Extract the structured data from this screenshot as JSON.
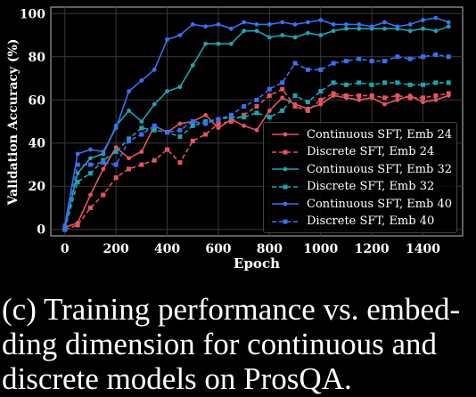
{
  "caption": "(c) Training performance vs. embed-ding dimension for continuous and discrete models on ProsQA.",
  "caption_lines": [
    "(c) Training performance vs. embed-",
    "ding dimension for continuous and",
    "discrete models on ProsQA."
  ],
  "chart_data": {
    "type": "line",
    "xlabel": "Epoch",
    "ylabel": "Validation Accuracy (%)",
    "xlim": [
      -55,
      1555
    ],
    "ylim": [
      -3,
      103
    ],
    "xticks": [
      0,
      200,
      400,
      600,
      800,
      1000,
      1200,
      1400
    ],
    "yticks": [
      0,
      20,
      40,
      60,
      80,
      100
    ],
    "grid": true,
    "legend_position": "lower-right",
    "x": [
      0,
      50,
      100,
      150,
      200,
      250,
      300,
      350,
      400,
      450,
      500,
      550,
      600,
      650,
      700,
      750,
      800,
      850,
      900,
      950,
      1000,
      1050,
      1100,
      1150,
      1200,
      1250,
      1300,
      1350,
      1400,
      1450,
      1500
    ],
    "series": [
      {
        "name": "Continuous SFT, Emb 24",
        "color": "#e05563",
        "style": "solid",
        "marker": "circle",
        "values": [
          1,
          3,
          16,
          28,
          38,
          33,
          36,
          48,
          45,
          49,
          50,
          53,
          47,
          51,
          48,
          46,
          55,
          61,
          58,
          56,
          58,
          62,
          61,
          60,
          61,
          58,
          60,
          62,
          59,
          60,
          62
        ]
      },
      {
        "name": "Discrete SFT, Emb 24",
        "color": "#e05563",
        "style": "dashed",
        "marker": "square",
        "values": [
          0,
          2,
          10,
          16,
          24,
          28,
          30,
          32,
          37,
          31,
          41,
          44,
          49,
          50,
          53,
          57,
          62,
          65,
          57,
          55,
          60,
          63,
          62,
          62,
          62,
          61,
          62,
          61,
          61,
          62,
          63
        ]
      },
      {
        "name": "Continuous SFT, Emb 32",
        "color": "#1fa3ad",
        "style": "solid",
        "marker": "circle",
        "values": [
          1,
          26,
          33,
          35,
          48,
          55,
          50,
          58,
          64,
          66,
          76,
          86,
          86,
          86,
          92,
          92,
          89,
          90,
          89,
          91,
          90,
          92,
          93,
          93,
          93,
          93,
          93,
          92,
          93,
          92,
          94
        ]
      },
      {
        "name": "Discrete SFT, Emb 32",
        "color": "#1fa3ad",
        "style": "dashed",
        "marker": "square",
        "values": [
          0,
          22,
          26,
          32,
          36,
          42,
          47,
          46,
          45,
          43,
          48,
          50,
          51,
          52,
          52,
          54,
          52,
          55,
          62,
          59,
          64,
          68,
          67,
          68,
          67,
          68,
          68,
          67,
          67,
          68,
          68
        ]
      },
      {
        "name": "Continuous SFT, Emb 40",
        "color": "#3a6ff0",
        "style": "solid",
        "marker": "circle",
        "values": [
          2,
          35,
          37,
          36,
          47,
          64,
          69,
          74,
          88,
          90,
          95,
          94,
          95,
          93,
          96,
          95,
          95,
          96,
          95,
          96,
          97,
          95,
          95,
          95,
          94,
          96,
          94,
          95,
          97,
          98,
          96
        ]
      },
      {
        "name": "Discrete SFT, Emb 40",
        "color": "#3a6ff0",
        "style": "dashed",
        "marker": "square",
        "values": [
          0,
          30,
          30,
          31,
          30,
          41,
          44,
          48,
          45,
          46,
          50,
          49,
          51,
          53,
          57,
          60,
          65,
          68,
          77,
          74,
          74,
          77,
          78,
          79,
          78,
          78,
          80,
          79,
          80,
          81,
          80
        ]
      }
    ]
  }
}
